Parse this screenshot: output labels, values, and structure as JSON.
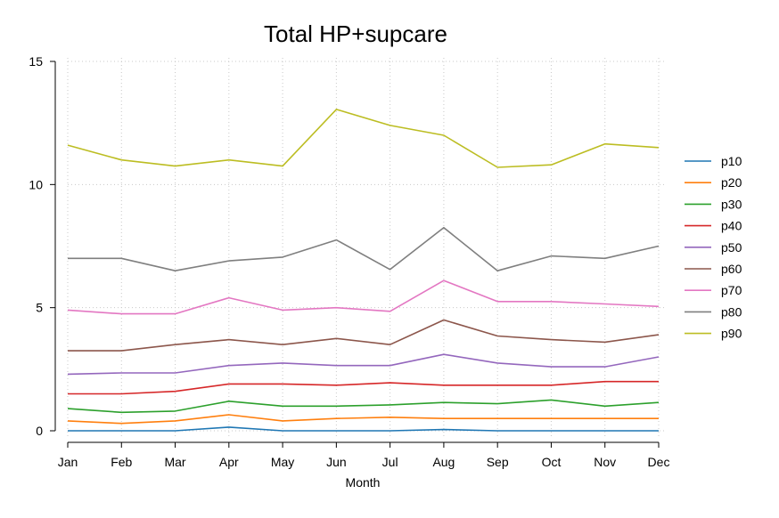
{
  "chart_data": {
    "type": "line",
    "title": "Total HP+supcare",
    "xlabel": "Month",
    "ylabel": "",
    "categories": [
      "Jan",
      "Feb",
      "Mar",
      "Apr",
      "May",
      "Jun",
      "Jul",
      "Aug",
      "Sep",
      "Oct",
      "Nov",
      "Dec"
    ],
    "ylim": [
      0,
      15
    ],
    "yticks": [
      0,
      5,
      10,
      15
    ],
    "grid": true,
    "legend_position": "right",
    "series": [
      {
        "name": "p10",
        "color": "#1f77b4",
        "values": [
          0,
          0,
          0,
          0.15,
          0,
          0,
          0,
          0.05,
          0,
          0,
          0,
          0
        ]
      },
      {
        "name": "p20",
        "color": "#ff7f0e",
        "values": [
          0.4,
          0.3,
          0.4,
          0.65,
          0.4,
          0.5,
          0.55,
          0.5,
          0.5,
          0.5,
          0.5,
          0.5
        ]
      },
      {
        "name": "p30",
        "color": "#2ca02c",
        "values": [
          0.9,
          0.75,
          0.8,
          1.2,
          1.0,
          1.0,
          1.05,
          1.15,
          1.1,
          1.25,
          1.0,
          1.15
        ]
      },
      {
        "name": "p40",
        "color": "#d62728",
        "values": [
          1.5,
          1.5,
          1.6,
          1.9,
          1.9,
          1.85,
          1.95,
          1.85,
          1.85,
          1.85,
          2.0,
          2.0
        ]
      },
      {
        "name": "p50",
        "color": "#9467bd",
        "values": [
          2.3,
          2.35,
          2.35,
          2.65,
          2.75,
          2.65,
          2.65,
          3.1,
          2.75,
          2.6,
          2.6,
          3.0
        ]
      },
      {
        "name": "p60",
        "color": "#8c564b",
        "values": [
          3.25,
          3.25,
          3.5,
          3.7,
          3.5,
          3.75,
          3.5,
          4.5,
          3.85,
          3.7,
          3.6,
          3.9
        ]
      },
      {
        "name": "p70",
        "color": "#e377c2",
        "values": [
          4.9,
          4.75,
          4.75,
          5.4,
          4.9,
          5.0,
          4.85,
          6.1,
          5.25,
          5.25,
          5.15,
          5.05
        ]
      },
      {
        "name": "p80",
        "color": "#7f7f7f",
        "values": [
          7.0,
          7.0,
          6.5,
          6.9,
          7.05,
          7.75,
          6.55,
          8.25,
          6.5,
          7.1,
          7.0,
          7.5
        ]
      },
      {
        "name": "p90",
        "color": "#bcbd22",
        "values": [
          11.6,
          11.0,
          10.75,
          11.0,
          10.75,
          13.05,
          12.4,
          12.0,
          10.7,
          10.8,
          11.65,
          11.5
        ]
      }
    ]
  }
}
